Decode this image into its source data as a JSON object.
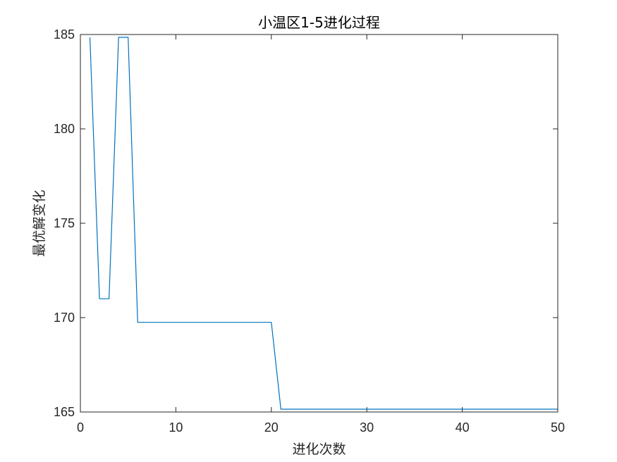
{
  "chart_data": {
    "type": "line",
    "title": "小温区1-5进化过程",
    "xlabel": "进化次数",
    "ylabel": "最优解变化",
    "xlim": [
      0,
      50
    ],
    "ylim": [
      165,
      185
    ],
    "xticks": [
      0,
      10,
      20,
      30,
      40,
      50
    ],
    "yticks": [
      165,
      170,
      175,
      180,
      185
    ],
    "grid": false,
    "legend": "none",
    "series": [
      {
        "color": "#0072BD",
        "x": [
          1,
          2,
          3,
          4,
          5,
          6,
          7,
          8,
          9,
          10,
          11,
          12,
          13,
          14,
          15,
          16,
          17,
          18,
          19,
          20,
          21,
          22,
          23,
          24,
          25,
          26,
          27,
          28,
          29,
          30,
          31,
          32,
          33,
          34,
          35,
          36,
          37,
          38,
          39,
          40,
          41,
          42,
          43,
          44,
          45,
          46,
          47,
          48,
          49,
          50
        ],
        "y": [
          184.85,
          171.0,
          171.0,
          184.85,
          184.85,
          169.75,
          169.75,
          169.75,
          169.75,
          169.75,
          169.75,
          169.75,
          169.75,
          169.75,
          169.75,
          169.75,
          169.75,
          169.75,
          169.75,
          169.75,
          165.15,
          165.15,
          165.15,
          165.15,
          165.15,
          165.15,
          165.15,
          165.15,
          165.15,
          165.15,
          165.15,
          165.15,
          165.15,
          165.15,
          165.15,
          165.15,
          165.15,
          165.15,
          165.15,
          165.15,
          165.15,
          165.15,
          165.15,
          165.15,
          165.15,
          165.15,
          165.15,
          165.15,
          165.15,
          165.15
        ]
      }
    ]
  }
}
